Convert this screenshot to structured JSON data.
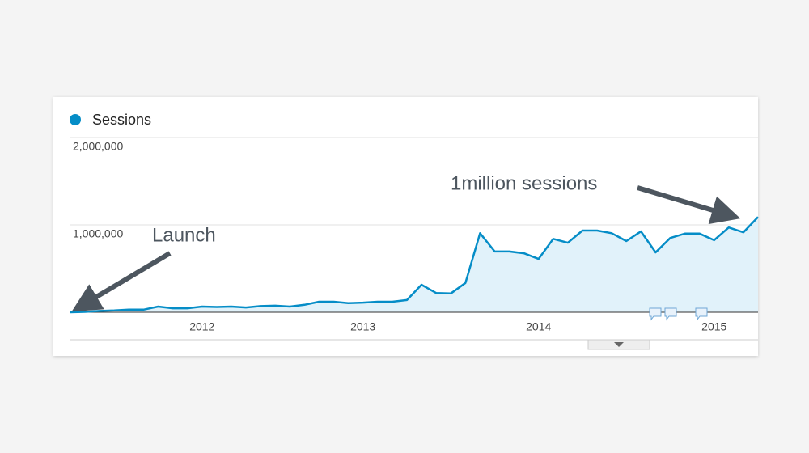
{
  "chart_data": {
    "type": "line",
    "annotations": [
      "Launch",
      "1million sessions"
    ],
    "categories": [
      null,
      null,
      null,
      null,
      null,
      null,
      null,
      null,
      null,
      "2012",
      null,
      null,
      null,
      null,
      null,
      null,
      null,
      null,
      null,
      null,
      "2013",
      null,
      null,
      null,
      null,
      null,
      null,
      null,
      null,
      null,
      null,
      null,
      "2014",
      null,
      null,
      null,
      null,
      null,
      null,
      null,
      null,
      null,
      null,
      null,
      "2015",
      null,
      null,
      null
    ],
    "series": [
      {
        "name": "Sessions",
        "color": "#058dc7",
        "fill": "#e1f2fa",
        "values": [
          0,
          5000,
          15000,
          20000,
          30000,
          30000,
          65000,
          45000,
          45000,
          65000,
          60000,
          65000,
          55000,
          70000,
          75000,
          65000,
          85000,
          120000,
          120000,
          105000,
          110000,
          120000,
          120000,
          140000,
          315000,
          220000,
          215000,
          335000,
          905000,
          695000,
          695000,
          675000,
          610000,
          840000,
          795000,
          935000,
          935000,
          905000,
          815000,
          925000,
          685000,
          850000,
          900000,
          900000,
          825000,
          970000,
          915000,
          1090000
        ]
      }
    ],
    "ylim": [
      0,
      2000000
    ],
    "yticks": [
      {
        "value": 1000000,
        "label": "1,000,000"
      },
      {
        "value": 2000000,
        "label": "2,000,000"
      }
    ],
    "grid": true
  }
}
